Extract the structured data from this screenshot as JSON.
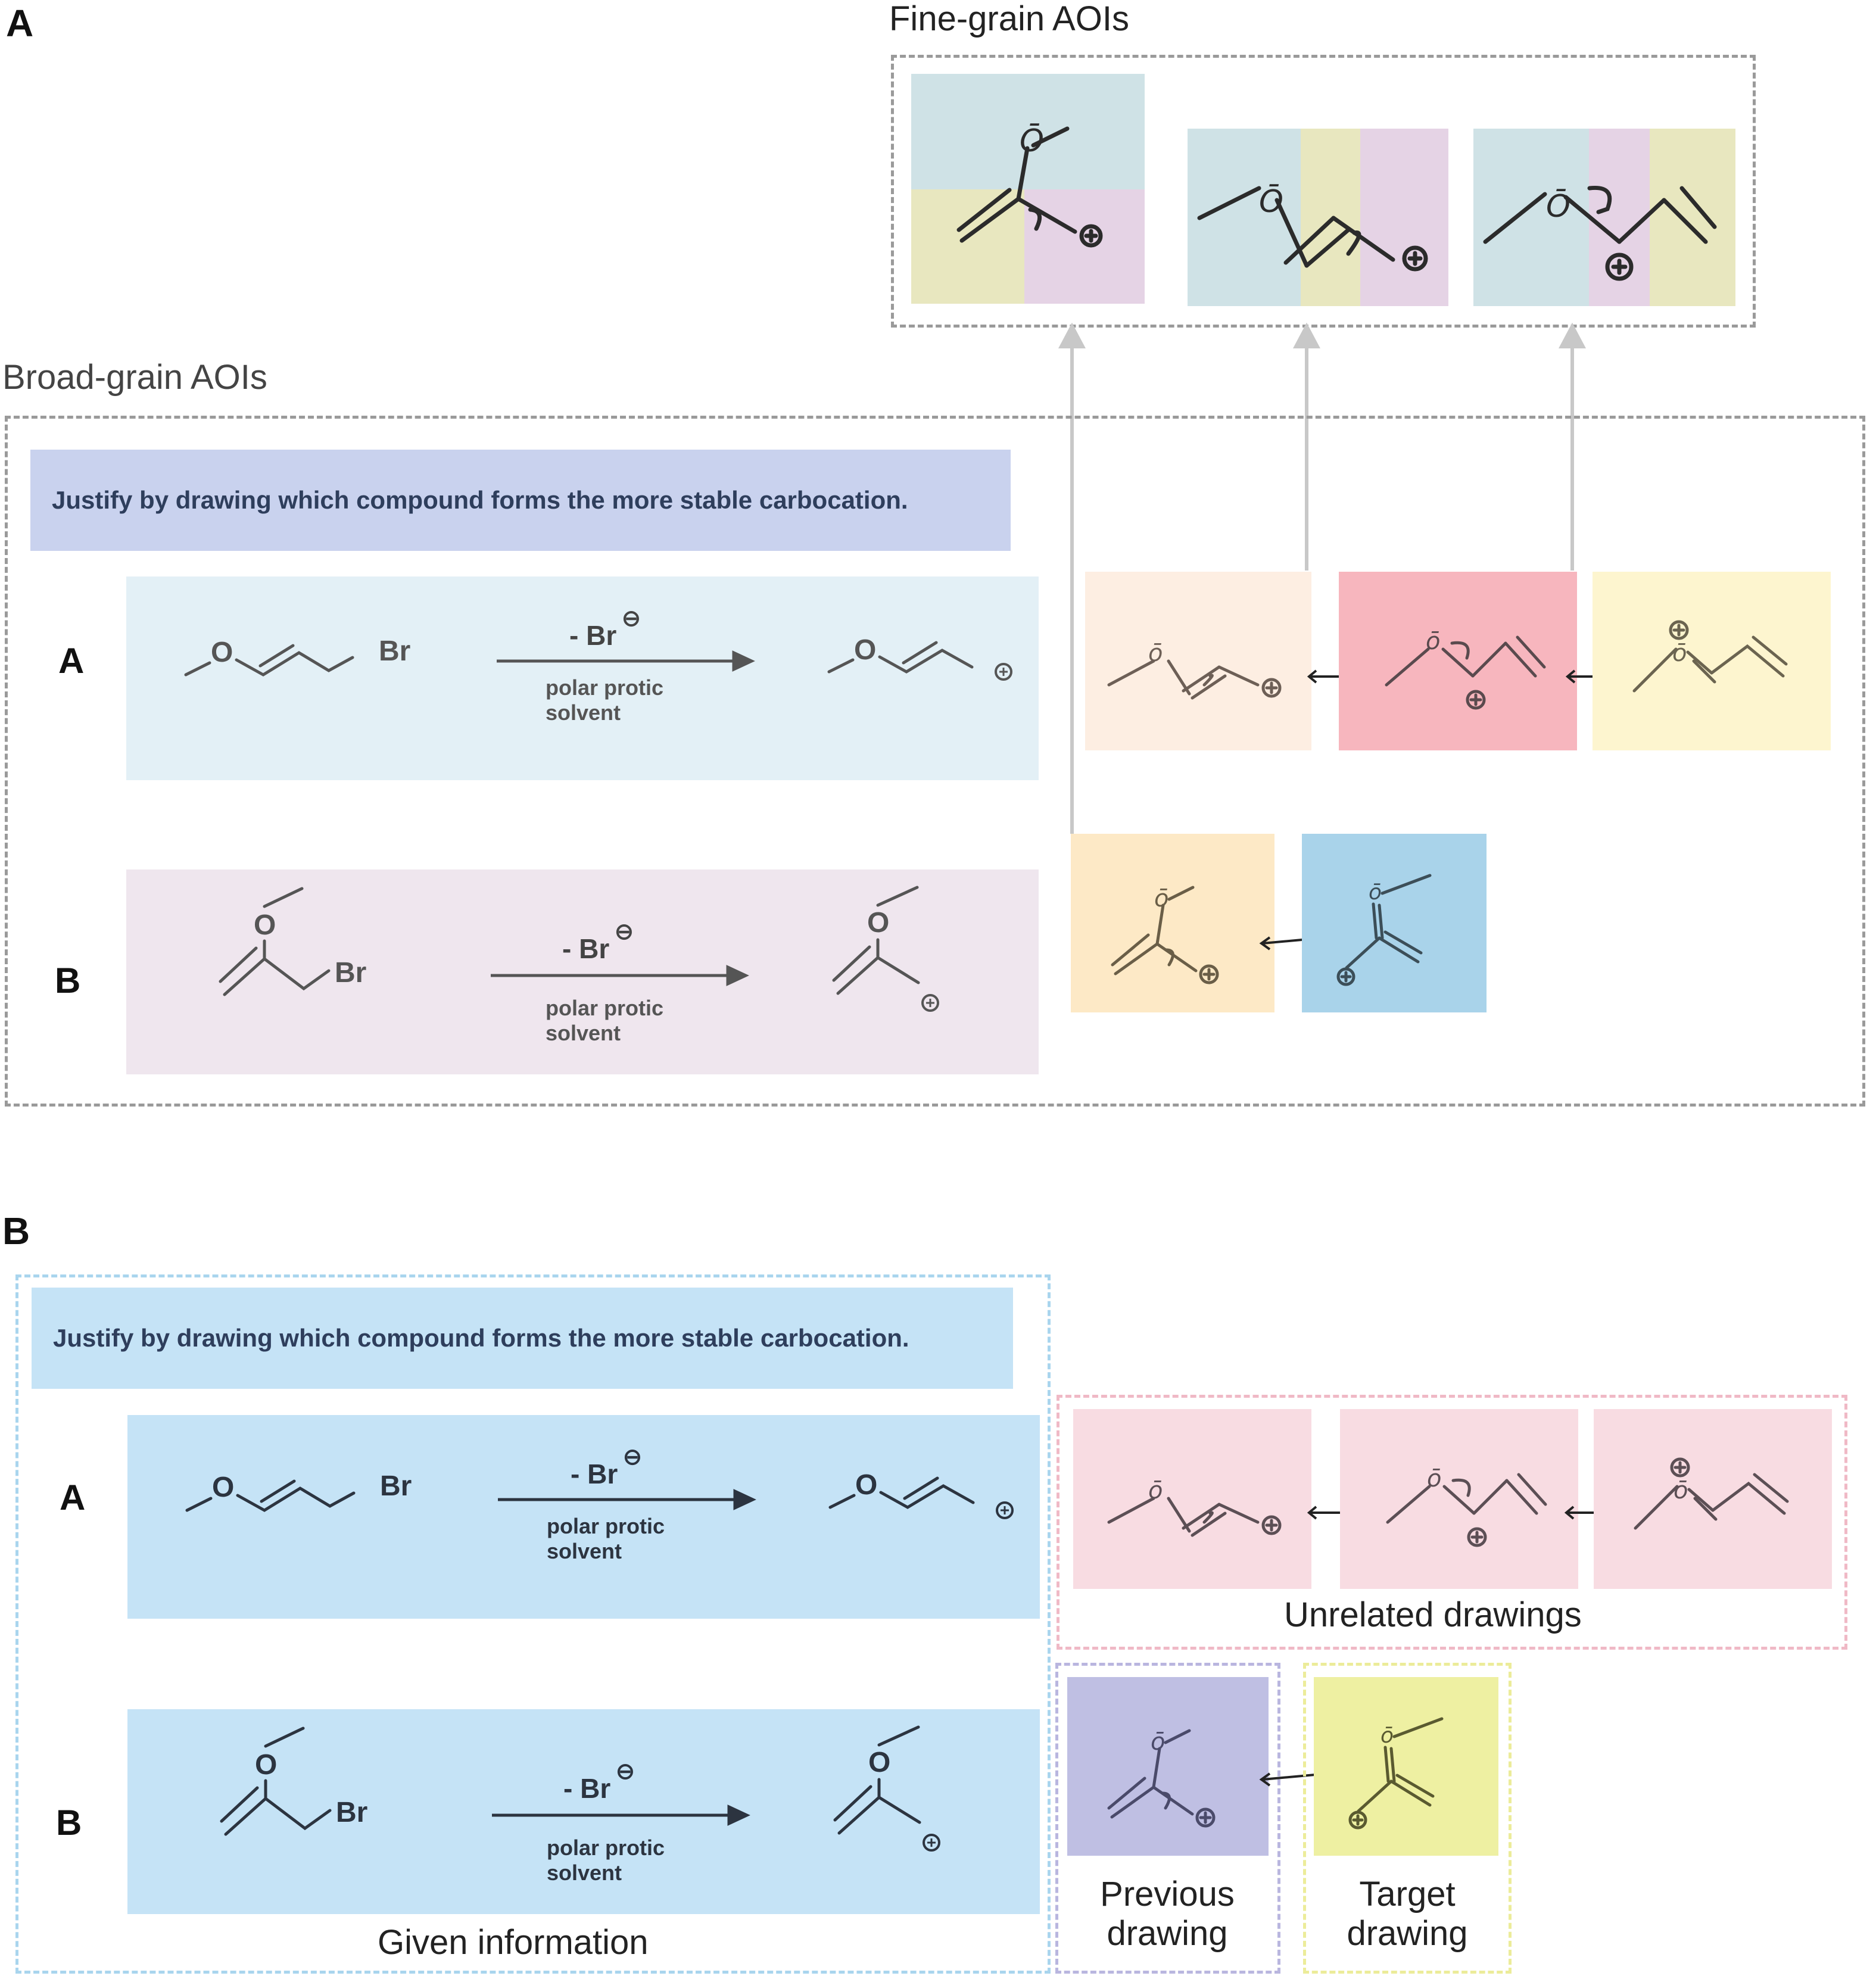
{
  "panel_a": {
    "letter": "A",
    "fine_grain_title": "Fine-grain AOIs",
    "broad_grain_title": "Broad-grain AOIs",
    "question": "Justify by drawing which compound forms the more stable carbocation.",
    "row_a": {
      "letter": "A",
      "reactant_O": "O",
      "reactant_Br": "Br",
      "reagent_top": "- Br",
      "reagent_charge": "⊖",
      "reagent_line1": "polar protic",
      "reagent_line2": "solvent",
      "product_O": "O",
      "product_charge": "⊕"
    },
    "row_b": {
      "letter": "B",
      "reactant_O": "O",
      "reactant_Br": "Br",
      "reagent_top": "- Br",
      "reagent_charge": "⊖",
      "reagent_line1": "polar protic",
      "reagent_line2": "solvent",
      "product_O": "O",
      "product_charge": "⊕"
    },
    "colors": {
      "question_bg": "#c9d2ee",
      "row_a_bg": "#e3f0f6",
      "row_b_bg": "#efe6ee",
      "drawing_a1": "#fdeee2",
      "drawing_a2": "#f7b6be",
      "drawing_a3": "#fdf5cf",
      "drawing_b1": "#fde9c6",
      "drawing_b2": "#a9d3ea",
      "fine_blue": "#cfe2e6",
      "fine_yellow": "#e8e7bf",
      "fine_purple": "#e5d3e5",
      "dash": "#9a9a9a"
    }
  },
  "panel_b": {
    "letter": "B",
    "question": "Justify by drawing which compound forms the more stable carbocation.",
    "row_a": {
      "letter": "A",
      "reactant_O": "O",
      "reactant_Br": "Br",
      "reagent_top": "- Br",
      "reagent_charge": "⊖",
      "reagent_line1": "polar protic",
      "reagent_line2": "solvent",
      "product_O": "O",
      "product_charge": "⊕"
    },
    "row_b": {
      "letter": "B",
      "reactant_O": "O",
      "reactant_Br": "Br",
      "reagent_top": "- Br",
      "reagent_charge": "⊖",
      "reagent_line1": "polar protic",
      "reagent_line2": "solvent",
      "product_O": "O",
      "product_charge": "⊕"
    },
    "given_information_label": "Given information",
    "unrelated_label": "Unrelated drawings",
    "previous_label_1": "Previous",
    "previous_label_2": "drawing",
    "target_label_1": "Target",
    "target_label_2": "drawing",
    "colors": {
      "question_bg": "#c5e3f6",
      "row_bg": "#c5e3f6",
      "unrelated_bg": "#f8dce2",
      "previous_bg": "#bfbfe3",
      "target_bg": "#eef0a2",
      "given_dash": "#a9d5ee",
      "unrelated_dash": "#f0b9c6",
      "previous_dash": "#b9b6df",
      "target_dash": "#ecec9a"
    }
  }
}
